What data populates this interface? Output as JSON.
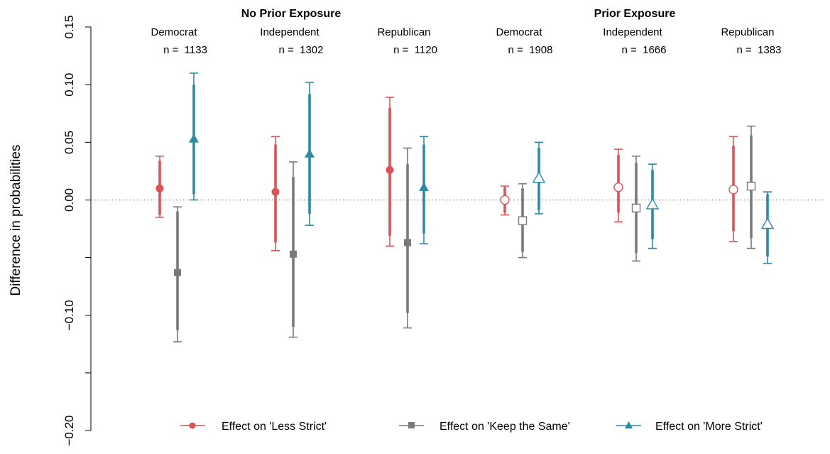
{
  "chart_data": {
    "type": "scatter",
    "ylabel": "Difference in probabilities",
    "ylim": [
      -0.2,
      0.15
    ],
    "yticks": [
      {
        "value": 0.15,
        "label": "0.15"
      },
      {
        "value": 0.1,
        "label": "0.10"
      },
      {
        "value": 0.05,
        "label": "0.05"
      },
      {
        "value": 0.0,
        "label": "0.00"
      },
      {
        "value": -0.05,
        "label": ""
      },
      {
        "value": -0.1,
        "label": "−0.10"
      },
      {
        "value": -0.15,
        "label": ""
      },
      {
        "value": -0.2,
        "label": "−0.20"
      }
    ],
    "reference_line": 0,
    "group_titles": [
      "No Prior Exposure",
      "Prior Exposure"
    ],
    "categories": [
      {
        "group": "No Prior Exposure",
        "party": "Democrat",
        "n": "n =  1133"
      },
      {
        "group": "No Prior Exposure",
        "party": "Independent",
        "n": "n =  1302"
      },
      {
        "group": "No Prior Exposure",
        "party": "Republican",
        "n": "n =  1120"
      },
      {
        "group": "Prior Exposure",
        "party": "Democrat",
        "n": "n =  1908"
      },
      {
        "group": "Prior Exposure",
        "party": "Independent",
        "n": "n =  1666"
      },
      {
        "group": "Prior Exposure",
        "party": "Republican",
        "n": "n =  1383"
      }
    ],
    "series": [
      {
        "name": "Effect on 'Less Strict'",
        "color": "#dc5356",
        "marker": "circle",
        "points": [
          {
            "estimate": 0.01,
            "ci90": [
              -0.013,
              0.034
            ],
            "ci95": [
              -0.015,
              0.038
            ]
          },
          {
            "estimate": 0.007,
            "ci90": [
              -0.037,
              0.048
            ],
            "ci95": [
              -0.044,
              0.055
            ]
          },
          {
            "estimate": 0.026,
            "ci90": [
              -0.031,
              0.08
            ],
            "ci95": [
              -0.04,
              0.089
            ]
          },
          {
            "estimate": 0.0,
            "ci90": [
              -0.011,
              0.011
            ],
            "ci95": [
              -0.013,
              0.012
            ]
          },
          {
            "estimate": 0.011,
            "ci90": [
              -0.011,
              0.039
            ],
            "ci95": [
              -0.019,
              0.044
            ]
          },
          {
            "estimate": 0.009,
            "ci90": [
              -0.027,
              0.047
            ],
            "ci95": [
              -0.036,
              0.055
            ]
          }
        ]
      },
      {
        "name": "Effect on 'Keep the Same'",
        "color": "#7a7a7a",
        "marker": "square",
        "points": [
          {
            "estimate": -0.063,
            "ci90": [
              -0.113,
              -0.01
            ],
            "ci95": [
              -0.123,
              -0.006
            ]
          },
          {
            "estimate": -0.047,
            "ci90": [
              -0.11,
              0.02
            ],
            "ci95": [
              -0.119,
              0.033
            ]
          },
          {
            "estimate": -0.037,
            "ci90": [
              -0.098,
              0.031
            ],
            "ci95": [
              -0.111,
              0.045
            ]
          },
          {
            "estimate": -0.018,
            "ci90": [
              -0.045,
              0.01
            ],
            "ci95": [
              -0.05,
              0.014
            ]
          },
          {
            "estimate": -0.007,
            "ci90": [
              -0.046,
              0.032
            ],
            "ci95": [
              -0.053,
              0.038
            ]
          },
          {
            "estimate": 0.012,
            "ci90": [
              -0.033,
              0.056
            ],
            "ci95": [
              -0.042,
              0.064
            ]
          }
        ]
      },
      {
        "name": "Effect on 'More Strict'",
        "color": "#2b8aa6",
        "marker": "triangle",
        "points": [
          {
            "estimate": 0.053,
            "ci90": [
              0.005,
              0.1
            ],
            "ci95": [
              0.0,
              0.11
            ]
          },
          {
            "estimate": 0.04,
            "ci90": [
              -0.012,
              0.092
            ],
            "ci95": [
              -0.022,
              0.102
            ]
          },
          {
            "estimate": 0.011,
            "ci90": [
              -0.029,
              0.048
            ],
            "ci95": [
              -0.038,
              0.055
            ]
          },
          {
            "estimate": 0.019,
            "ci90": [
              -0.009,
              0.045
            ],
            "ci95": [
              -0.012,
              0.05
            ]
          },
          {
            "estimate": -0.004,
            "ci90": [
              -0.034,
              0.026
            ],
            "ci95": [
              -0.042,
              0.031
            ]
          },
          {
            "estimate": -0.021,
            "ci90": [
              -0.049,
              0.005
            ],
            "ci95": [
              -0.055,
              0.007
            ]
          }
        ]
      }
    ],
    "prior_exposure_markers": "open",
    "no_prior_exposure_markers": "filled",
    "legend": {
      "placement": "bottom",
      "entries": [
        "Effect on 'Less Strict'",
        "Effect on 'Keep the Same'",
        "Effect on 'More Strict'"
      ]
    },
    "grid": false
  }
}
